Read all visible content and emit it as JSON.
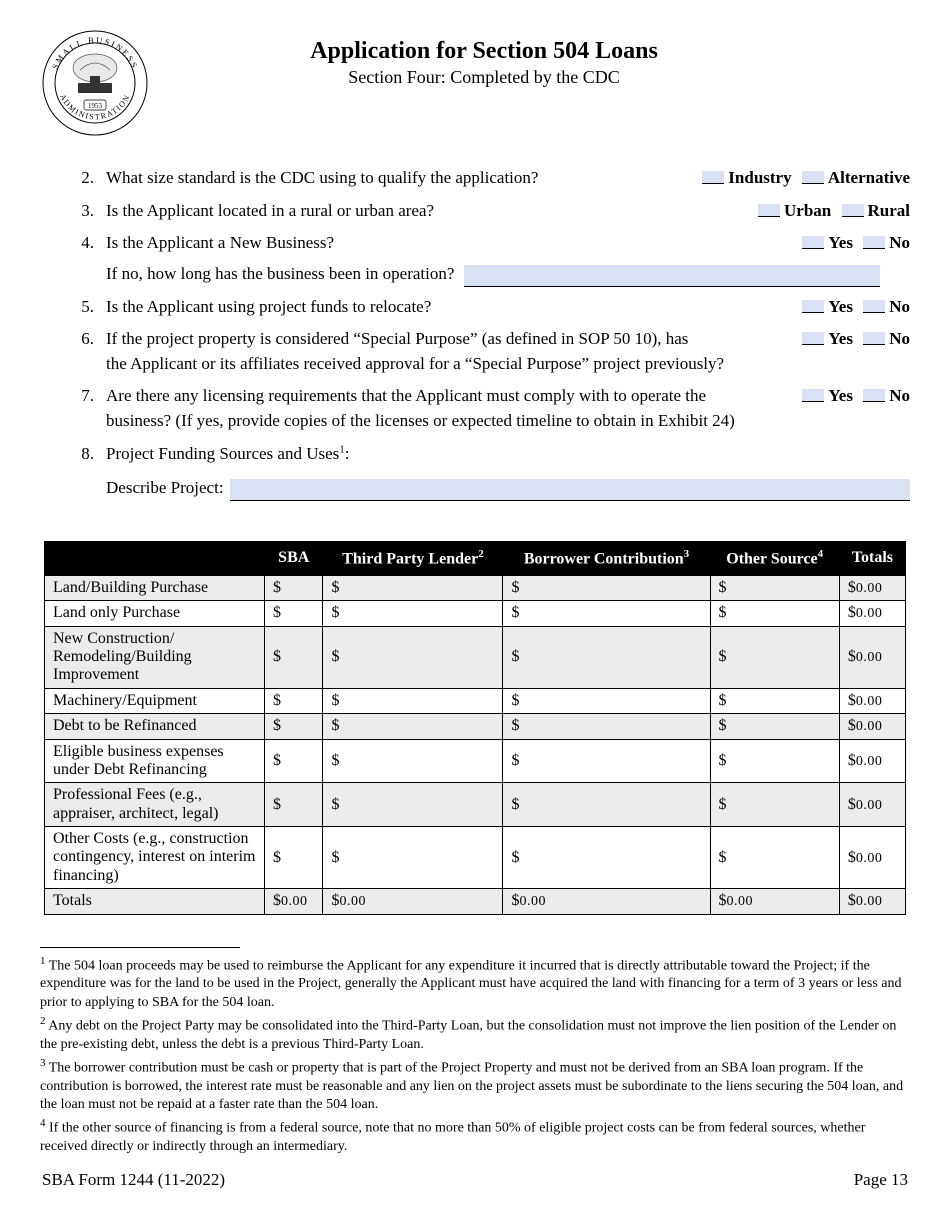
{
  "header": {
    "title": "Application for Section 504 Loans",
    "subtitle": "Section Four: Completed by the CDC",
    "seal_text_top": "SMALL BUSINESS",
    "seal_text_bottom": "ADMINISTRATION",
    "seal_year": "1953"
  },
  "questions": {
    "q2": {
      "num": "2.",
      "text": "What size standard is the CDC using to qualify the application?",
      "opt1": "Industry",
      "opt2": "Alternative"
    },
    "q3": {
      "num": "3.",
      "text": "Is the Applicant located in a rural or urban area?",
      "opt1": "Urban",
      "opt2": "Rural"
    },
    "q4": {
      "num": "4.",
      "text": "Is the Applicant a New Business?",
      "opt1": "Yes",
      "opt2": "No",
      "sub": "If no, how long has the business been in operation?"
    },
    "q5": {
      "num": "5.",
      "text": "Is the Applicant using project funds to relocate?",
      "opt1": "Yes",
      "opt2": "No"
    },
    "q6": {
      "num": "6.",
      "text_a": "If the project property is considered “Special Purpose” (as defined in SOP 50 10), has",
      "text_b": "the Applicant or its affiliates received approval for a “Special Purpose” project previously?",
      "opt1": "Yes",
      "opt2": "No"
    },
    "q7": {
      "num": "7.",
      "text_a": "Are there any licensing requirements that the Applicant must comply with to operate the",
      "text_b": "business? (If yes, provide copies of the licenses or expected timeline to obtain in Exhibit 24)",
      "opt1": "Yes",
      "opt2": "No"
    },
    "q8": {
      "num": "8.",
      "text": "Project Funding Sources and Uses",
      "sup": "1",
      "colon": ":",
      "desc_label": "Describe Project:"
    }
  },
  "table": {
    "headers": {
      "blank": "",
      "sba": "SBA",
      "tpl": "Third Party Lender",
      "tpl_sup": "2",
      "bc": "Borrower Contribution",
      "bc_sup": "3",
      "os": "Other Source",
      "os_sup": "4",
      "totals": "Totals"
    },
    "rows": [
      {
        "label": "Land/Building Purchase",
        "shade": true,
        "totals": "0.00"
      },
      {
        "label": "Land only Purchase",
        "shade": false,
        "totals": "0.00"
      },
      {
        "label": "New Construction/ Remodeling/Building Improvement",
        "shade": true,
        "totals": "0.00"
      },
      {
        "label": "Machinery/Equipment",
        "shade": false,
        "totals": "0.00"
      },
      {
        "label": "Debt to be Refinanced",
        "shade": true,
        "totals": "0.00"
      },
      {
        "label": "Eligible business expenses under Debt Refinancing",
        "shade": false,
        "totals": "0.00"
      },
      {
        "label": "Professional Fees (e.g., appraiser, architect, legal)",
        "shade": true,
        "totals": "0.00"
      },
      {
        "label": "Other Costs (e.g., construction contingency, interest on interim financing)",
        "shade": false,
        "totals": "0.00"
      }
    ],
    "totals_row": {
      "label": "Totals",
      "sba": "0.00",
      "tpl": "0.00",
      "bc": "0.00",
      "os": "0.00",
      "totals": "0.00"
    }
  },
  "footnotes": {
    "f1_sup": "1",
    "f1": " The 504 loan proceeds may be used to reimburse the Applicant for any expenditure it incurred that is directly attributable toward the Project; if the expenditure was for the land to be used in the Project, generally the Applicant must have acquired the land with financing for a term of 3 years or less and prior to applying to SBA for the 504 loan.",
    "f2_sup": "2",
    "f2": " Any debt on the Project Party may be consolidated into the Third-Party Loan, but the consolidation must not improve the lien position of the Lender on the pre-existing debt, unless the debt is a previous Third-Party Loan.",
    "f3_sup": "3",
    "f3": " The borrower contribution must be cash or property that is part of the Project Property and must not be derived from an SBA loan program. If the contribution is borrowed, the interest rate must be reasonable and any lien on the project assets must be subordinate to the liens securing the 504 loan, and the loan must not be repaid at a faster rate than the 504 loan.",
    "f4_sup": "4",
    "f4": " If the other source of financing is from a federal source, note that no more than 50% of eligible project costs can be from federal sources, whether received directly or indirectly through an intermediary."
  },
  "footer": {
    "form": "SBA Form 1244 (11-2022)",
    "page": "Page 13"
  },
  "style": {
    "highlight_bg": "#d9e1f2",
    "table_header_bg": "#000000",
    "table_header_fg": "#ffffff",
    "shade_row_bg": "#ececec"
  }
}
